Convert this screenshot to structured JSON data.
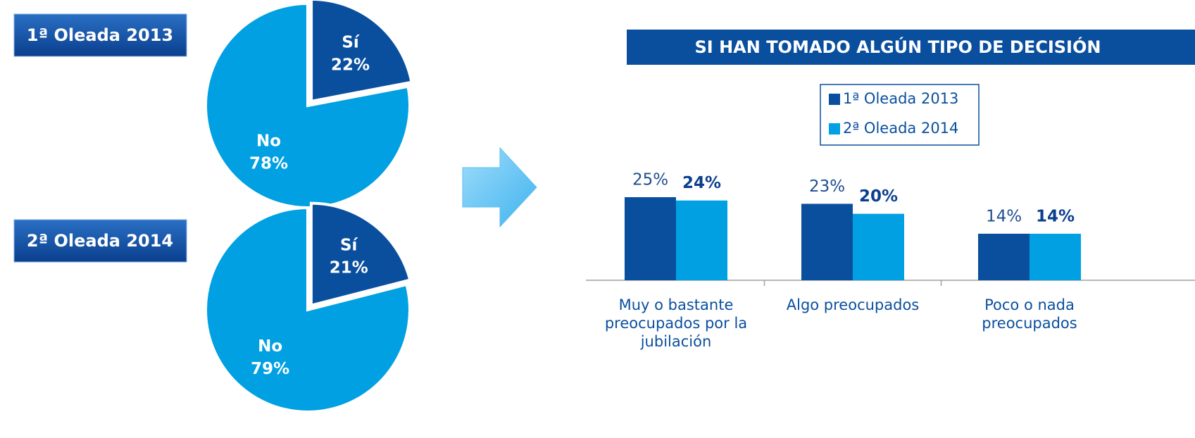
{
  "chart_data": [
    {
      "type": "pie",
      "title": "1ª Oleada 2013",
      "categories": [
        "Sí",
        "No"
      ],
      "values": [
        22,
        78
      ],
      "value_labels": [
        "22%",
        "78%"
      ],
      "colors": [
        "#0a4f9e",
        "#00a0e3"
      ]
    },
    {
      "type": "pie",
      "title": "2ª Oleada 2014",
      "categories": [
        "Sí",
        "No"
      ],
      "values": [
        21,
        79
      ],
      "value_labels": [
        "21%",
        "79%"
      ],
      "colors": [
        "#0a4f9e",
        "#00a0e3"
      ]
    },
    {
      "type": "bar",
      "title": "SI HAN TOMADO ALGÚN TIPO DE DECISIÓN",
      "categories": [
        "Muy o bastante preocupados por la jubilación",
        "Algo preocupados",
        "Poco o nada preocupados"
      ],
      "series": [
        {
          "name": "1ª Oleada 2013",
          "color": "#0a4f9e",
          "values": [
            25,
            23,
            14
          ],
          "value_labels": [
            "25%",
            "23%",
            "14%"
          ]
        },
        {
          "name": "2ª Oleada 2014",
          "color": "#00a0e3",
          "values": [
            24,
            20,
            14
          ],
          "value_labels": [
            "24%",
            "20%",
            "14%"
          ]
        }
      ],
      "legend": "top-right"
    }
  ]
}
